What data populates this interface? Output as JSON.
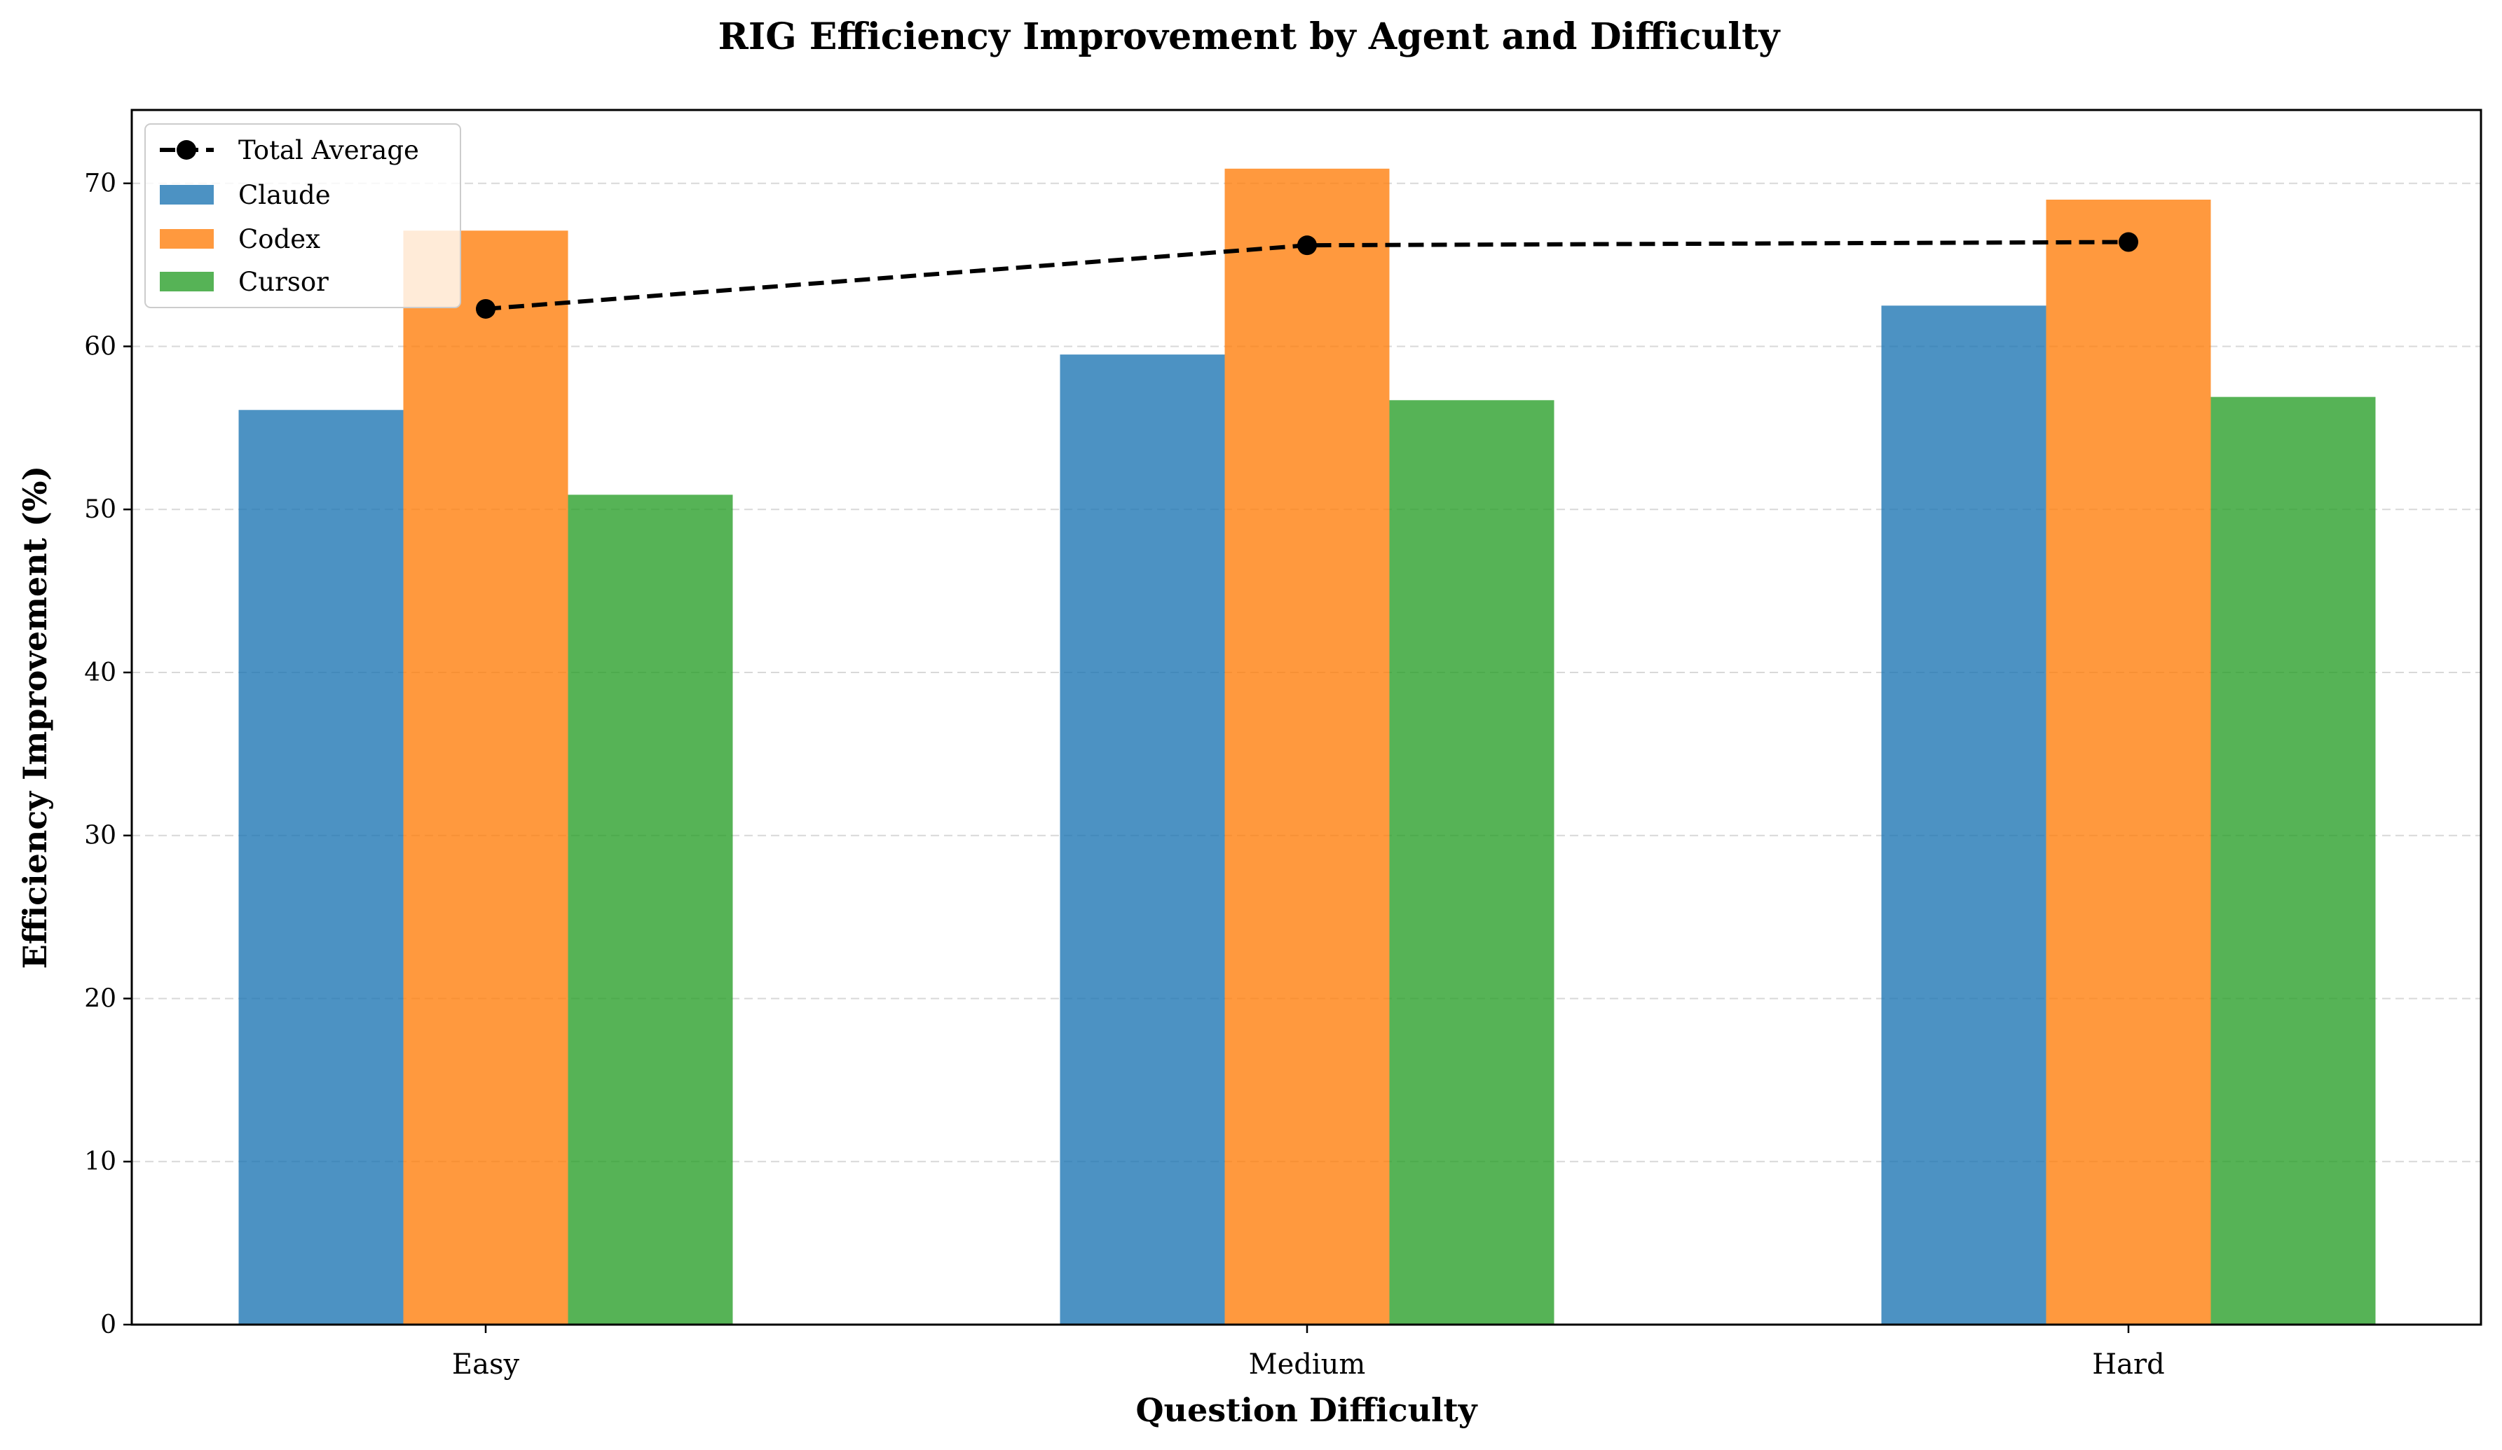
{
  "chart_data": {
    "type": "bar",
    "title": "RIG Efficiency Improvement by Agent and Difficulty",
    "xlabel": "Question Difficulty",
    "ylabel": "Efficiency Improvement (%)",
    "categories": [
      "Easy",
      "Medium",
      "Hard"
    ],
    "ylim": [
      0,
      74.5
    ],
    "yticks": [
      0,
      10,
      20,
      30,
      40,
      50,
      60,
      70
    ],
    "grid": "y-dashed",
    "legend_position": "top-left",
    "series": [
      {
        "name": "Claude",
        "color": "#1f77b4",
        "values": [
          56.1,
          59.5,
          62.5
        ]
      },
      {
        "name": "Codex",
        "color": "#ff7f0e",
        "values": [
          67.1,
          70.9,
          69.0
        ]
      },
      {
        "name": "Cursor",
        "color": "#2ca02c",
        "values": [
          50.9,
          56.7,
          56.9
        ]
      }
    ],
    "line": {
      "name": "Total Average",
      "color": "#000000",
      "style": "dashed",
      "marker": "circle",
      "values": [
        62.3,
        66.2,
        66.4
      ]
    }
  }
}
